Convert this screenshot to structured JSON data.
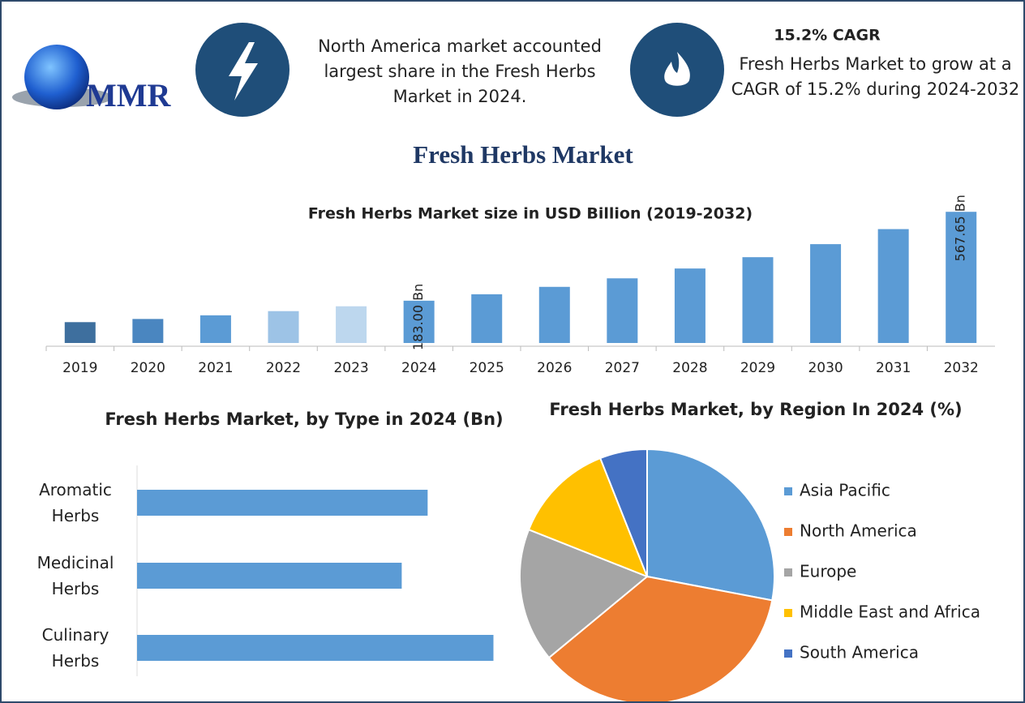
{
  "header": {
    "logo": "MMR",
    "note": "North America market accounted largest share in the Fresh Herbs Market in 2024.",
    "cagr_title": "15.2% CAGR",
    "cagr_text": "Fresh Herbs Market to grow at a CAGR of 15.2% during 2024-2032"
  },
  "title": "Fresh Herbs Market",
  "chart_data": [
    {
      "type": "bar",
      "title": "Fresh Herbs Market size in USD Billion (2019-2032)",
      "categories": [
        "2019",
        "2020",
        "2021",
        "2022",
        "2023",
        "2024",
        "2025",
        "2026",
        "2027",
        "2028",
        "2029",
        "2030",
        "2031",
        "2032"
      ],
      "values": [
        90.2,
        103.9,
        119.7,
        137.9,
        158.9,
        183,
        210.8,
        242.9,
        279.8,
        322.3,
        371.3,
        427.7,
        492.8,
        567.65
      ],
      "value_labels": [
        null,
        null,
        null,
        null,
        null,
        "183.00 Bn",
        null,
        null,
        null,
        null,
        null,
        null,
        null,
        "567.65 Bn"
      ],
      "colors": [
        "#3e6f9e",
        "#4a86c0",
        "#5b9bd5",
        "#9dc3e6",
        "#bdd7ee",
        "#5b9bd5",
        "#5b9bd5",
        "#5b9bd5",
        "#5b9bd5",
        "#5b9bd5",
        "#5b9bd5",
        "#5b9bd5",
        "#5b9bd5",
        "#5b9bd5"
      ],
      "ylim": [
        0,
        600
      ]
    },
    {
      "type": "hbar",
      "title": "Fresh Herbs Market, by Type in 2024 (Bn)",
      "categories": [
        "Aromatic Herbs",
        "Medicinal Herbs",
        "Culinary Herbs"
      ],
      "values": [
        58.3,
        53.1,
        71.5
      ],
      "color": "#5b9bd5",
      "xlim": [
        0,
        75
      ]
    },
    {
      "type": "pie",
      "title": "Fresh Herbs Market, by Region In 2024 (%)",
      "categories": [
        "Asia Pacific",
        "North America",
        "Europe",
        "Middle East and Africa",
        "South America"
      ],
      "values": [
        28,
        36,
        17,
        13,
        6
      ],
      "colors": [
        "#5b9bd5",
        "#ed7d31",
        "#a5a5a5",
        "#ffc000",
        "#4472c4"
      ],
      "legend": "right"
    }
  ]
}
